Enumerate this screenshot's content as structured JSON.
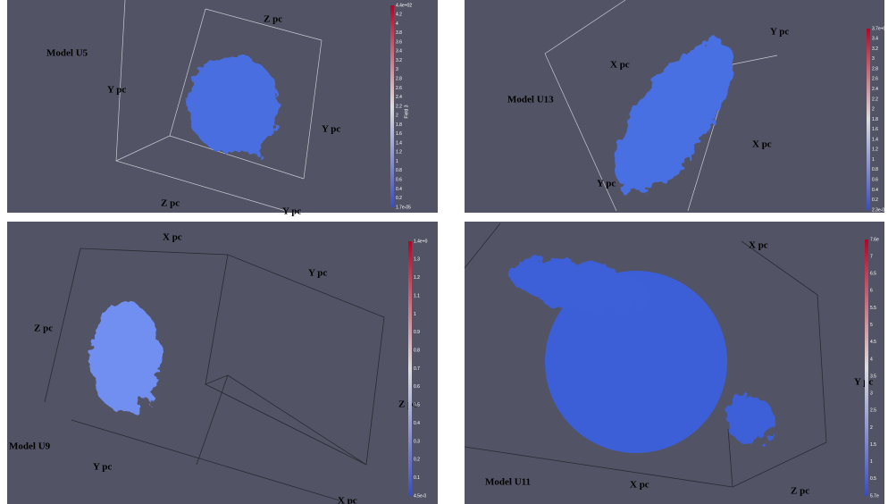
{
  "panels": [
    {
      "model": "Model U5",
      "axis_labels": [
        "Z pc",
        "Y pc",
        "Y pc",
        "Z pc",
        "Y pc"
      ],
      "colorbar": {
        "top": "4.4e+02",
        "ticks": [
          "4.2",
          "4",
          "3.8",
          "3.6",
          "3.4",
          "3.2",
          "3",
          "2.8",
          "2.6",
          "2.4",
          "2.2",
          "2",
          "1.8",
          "1.6",
          "1.4",
          "1.2",
          "1",
          "0.8",
          "0.6",
          "0.4",
          "0.2"
        ],
        "bottom": "1.7e-05",
        "field": "Field 3"
      }
    },
    {
      "model": "Model U13",
      "axis_labels": [
        "Y pc",
        "X pc",
        "X pc",
        "Y pc"
      ],
      "colorbar": {
        "top": "3.7e+0",
        "ticks": [
          "3.4",
          "3.2",
          "3",
          "2.8",
          "2.6",
          "2.4",
          "2.2",
          "2",
          "1.8",
          "1.6",
          "1.4",
          "1.2",
          "1",
          "0.8",
          "0.6",
          "0.4",
          "0.2"
        ],
        "bottom": "2.3e-0"
      }
    },
    {
      "model": "Model U9",
      "axis_labels": [
        "X pc",
        "Y pc",
        "Z pc",
        "Z pc",
        "Y pc",
        "X pc"
      ],
      "colorbar": {
        "top": "1.4e+0",
        "ticks": [
          "1.3",
          "1.2",
          "1.1",
          "1",
          "0.9",
          "0.8",
          "0.7",
          "0.6",
          "0.5",
          "0.4",
          "0.3",
          "0.2",
          "0.1"
        ],
        "bottom": "4.5e-0"
      }
    },
    {
      "model": "Model U11",
      "axis_labels": [
        "X pc",
        "Y pc",
        "X pc",
        "Z pc"
      ],
      "colorbar": {
        "top": "7.6e",
        "ticks": [
          "7",
          "6.5",
          "6",
          "5.5",
          "5",
          "4.5",
          "4",
          "3.5",
          "3",
          "2.5",
          "2",
          "1.5",
          "1",
          "0.5"
        ],
        "bottom": "5.7e"
      }
    }
  ]
}
